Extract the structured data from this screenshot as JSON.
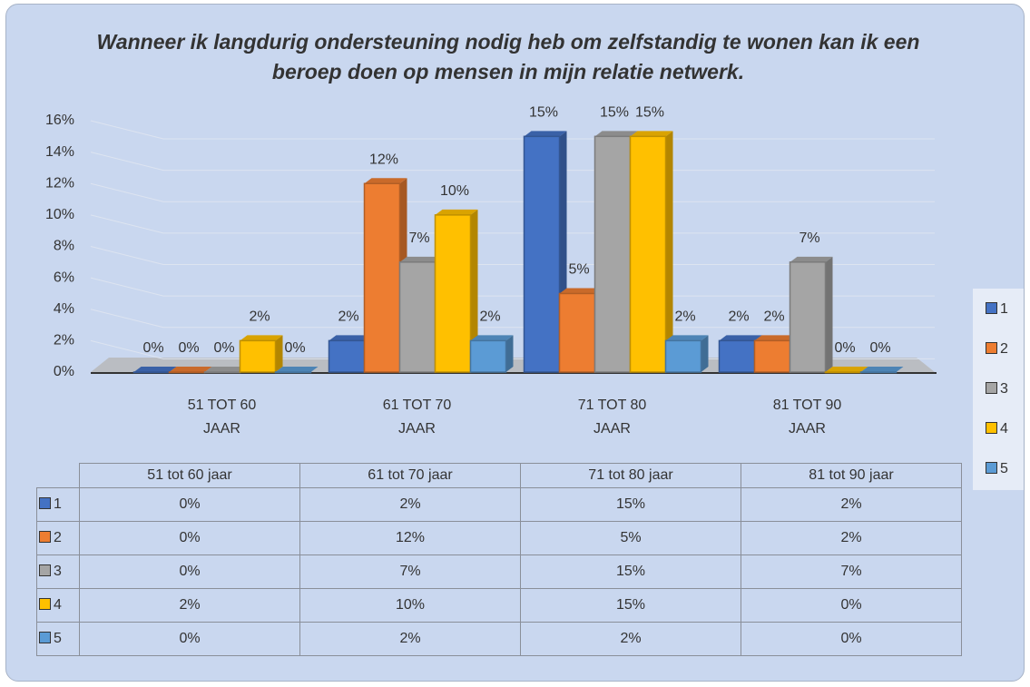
{
  "chart_data": {
    "type": "bar3d",
    "title": "Wanneer ik langdurig ondersteuning nodig heb om zelfstandig te wonen kan ik een beroep doen op mensen in mijn relatie netwerk.",
    "categories": [
      "51 TOT 60 JAAR",
      "61 TOT 70 JAAR",
      "71 TOT 80 JAAR",
      "81 TOT 90 JAAR"
    ],
    "table_headers": [
      "51 tot 60 jaar",
      "61 tot 70 jaar",
      "71 tot 80 jaar",
      "81 tot 90 jaar"
    ],
    "series": [
      {
        "name": "1",
        "color": "#4472c4",
        "values": [
          0,
          2,
          15,
          2
        ],
        "value_labels": [
          "0%",
          "2%",
          "15%",
          "2%"
        ]
      },
      {
        "name": "2",
        "color": "#ed7d31",
        "values": [
          0,
          12,
          5,
          2
        ],
        "value_labels": [
          "0%",
          "12%",
          "5%",
          "2%"
        ]
      },
      {
        "name": "3",
        "color": "#a5a5a5",
        "values": [
          0,
          7,
          15,
          7
        ],
        "value_labels": [
          "0%",
          "7%",
          "15%",
          "7%"
        ]
      },
      {
        "name": "4",
        "color": "#ffc000",
        "values": [
          2,
          10,
          15,
          0
        ],
        "value_labels": [
          "2%",
          "10%",
          "15%",
          "0%"
        ]
      },
      {
        "name": "5",
        "color": "#5b9bd5",
        "values": [
          0,
          2,
          2,
          0
        ],
        "value_labels": [
          "0%",
          "2%",
          "2%",
          "0%"
        ]
      }
    ],
    "ylim": [
      0,
      16
    ],
    "yticks": [
      {
        "value": 0,
        "label": "0%"
      },
      {
        "value": 2,
        "label": "2%"
      },
      {
        "value": 4,
        "label": "4%"
      },
      {
        "value": 6,
        "label": "6%"
      },
      {
        "value": 8,
        "label": "8%"
      },
      {
        "value": 10,
        "label": "10%"
      },
      {
        "value": 12,
        "label": "12%"
      },
      {
        "value": 14,
        "label": "14%"
      },
      {
        "value": 16,
        "label": "16%"
      }
    ],
    "grid": true,
    "legend": "right"
  }
}
